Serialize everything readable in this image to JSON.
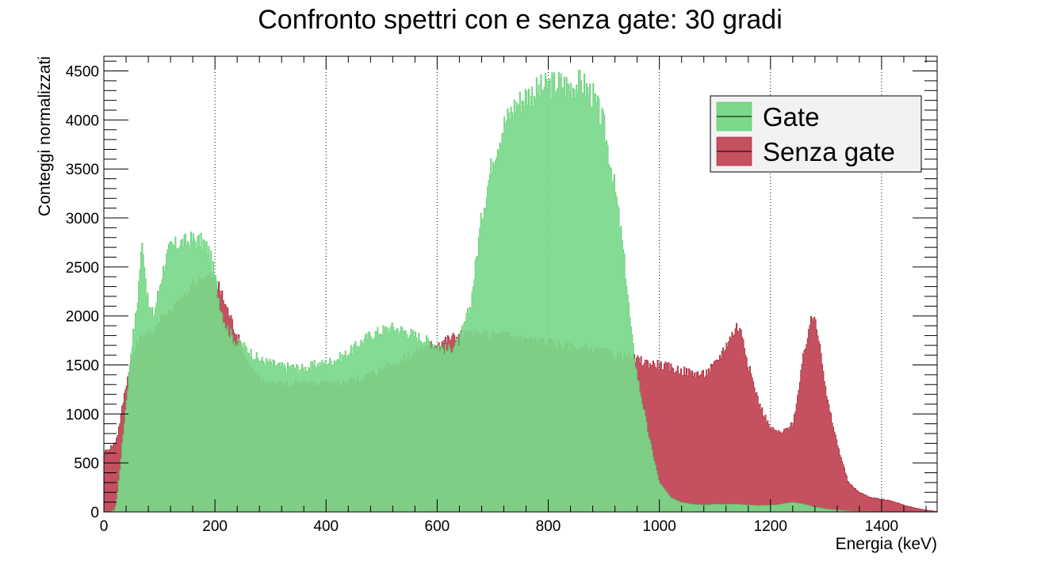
{
  "chart_data": {
    "type": "bar",
    "title": "Confronto spettri con e senza gate: 30 gradi",
    "xlabel": "Energia (keV)",
    "ylabel": "Conteggi normalizzati",
    "xlim": [
      0,
      1500
    ],
    "ylim": [
      0,
      4650
    ],
    "xticks": [
      0,
      200,
      400,
      600,
      800,
      1000,
      1200,
      1400
    ],
    "yticks": [
      0,
      500,
      1000,
      1500,
      2000,
      2500,
      3000,
      3500,
      4000,
      4500
    ],
    "grid": "vertical-dotted",
    "legend_position": "top-right",
    "series": [
      {
        "name": "Gate",
        "color": "#7ad98a",
        "edge": "#4fc864",
        "x": [
          0,
          10,
          20,
          25,
          30,
          40,
          50,
          60,
          65,
          70,
          75,
          80,
          90,
          100,
          110,
          120,
          130,
          140,
          150,
          160,
          170,
          180,
          190,
          200,
          210,
          220,
          230,
          240,
          250,
          260,
          280,
          300,
          320,
          340,
          360,
          380,
          400,
          420,
          440,
          460,
          480,
          500,
          520,
          540,
          560,
          580,
          600,
          620,
          640,
          660,
          680,
          700,
          720,
          740,
          760,
          780,
          800,
          820,
          840,
          860,
          880,
          900,
          920,
          930,
          940,
          950,
          960,
          980,
          1000,
          1020,
          1040,
          1060,
          1080,
          1100,
          1120,
          1140,
          1160,
          1180,
          1200,
          1220,
          1240,
          1260,
          1280,
          1300,
          1320,
          1340,
          1360,
          1400,
          1450,
          1500
        ],
        "y": [
          0,
          0,
          20,
          200,
          500,
          1100,
          1700,
          2100,
          2500,
          2780,
          2400,
          2100,
          2000,
          2300,
          2550,
          2700,
          2720,
          2750,
          2750,
          2780,
          2760,
          2750,
          2650,
          2400,
          2100,
          1900,
          1800,
          1720,
          1700,
          1650,
          1550,
          1520,
          1480,
          1480,
          1460,
          1500,
          1520,
          1560,
          1620,
          1720,
          1800,
          1850,
          1880,
          1850,
          1800,
          1750,
          1700,
          1650,
          1750,
          2100,
          3000,
          3600,
          3950,
          4150,
          4250,
          4300,
          4350,
          4380,
          4350,
          4380,
          4250,
          3950,
          3300,
          2900,
          2400,
          1800,
          1400,
          800,
          300,
          150,
          100,
          80,
          70,
          80,
          75,
          80,
          70,
          65,
          70,
          80,
          100,
          80,
          50,
          30,
          20,
          10,
          5,
          0,
          0,
          0
        ]
      },
      {
        "name": "Senza gate",
        "color": "#c45060",
        "edge": "#a0202f",
        "x": [
          0,
          10,
          20,
          25,
          30,
          40,
          50,
          60,
          70,
          80,
          90,
          100,
          110,
          120,
          130,
          140,
          150,
          160,
          170,
          180,
          190,
          200,
          210,
          220,
          230,
          240,
          250,
          260,
          280,
          300,
          320,
          340,
          360,
          380,
          400,
          420,
          440,
          460,
          480,
          500,
          520,
          540,
          560,
          580,
          600,
          620,
          640,
          660,
          680,
          700,
          720,
          740,
          760,
          780,
          800,
          820,
          840,
          860,
          880,
          900,
          920,
          940,
          960,
          980,
          1000,
          1020,
          1040,
          1060,
          1080,
          1100,
          1120,
          1130,
          1140,
          1150,
          1160,
          1180,
          1200,
          1220,
          1240,
          1250,
          1260,
          1270,
          1280,
          1290,
          1300,
          1320,
          1340,
          1360,
          1380,
          1400,
          1420,
          1440,
          1460,
          1480,
          1500
        ],
        "y": [
          600,
          650,
          700,
          800,
          950,
          1300,
          1550,
          1700,
          1800,
          1800,
          1850,
          1950,
          2000,
          2050,
          2100,
          2150,
          2200,
          2300,
          2350,
          2380,
          2400,
          2350,
          2250,
          2100,
          1950,
          1800,
          1650,
          1500,
          1350,
          1320,
          1300,
          1300,
          1300,
          1310,
          1300,
          1300,
          1330,
          1360,
          1400,
          1450,
          1500,
          1550,
          1620,
          1680,
          1720,
          1760,
          1800,
          1800,
          1800,
          1800,
          1800,
          1780,
          1760,
          1740,
          1720,
          1700,
          1680,
          1660,
          1650,
          1620,
          1600,
          1580,
          1550,
          1520,
          1500,
          1470,
          1440,
          1420,
          1400,
          1500,
          1700,
          1800,
          1900,
          1800,
          1500,
          1100,
          850,
          800,
          900,
          1200,
          1600,
          1900,
          2000,
          1700,
          1200,
          700,
          300,
          200,
          150,
          130,
          110,
          70,
          40,
          20,
          5
        ]
      }
    ]
  }
}
